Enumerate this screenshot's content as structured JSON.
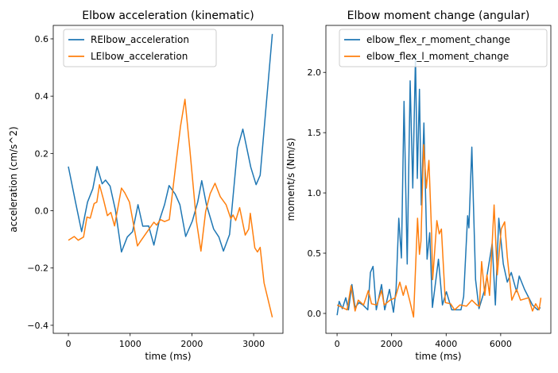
{
  "chart_data": [
    {
      "type": "line",
      "title": "Elbow acceleration (kinematic)",
      "xlabel": "time (ms)",
      "ylabel": "acceleration (cm/s^2)",
      "xlim": [
        -245,
        3475
      ],
      "ylim": [
        -0.428,
        0.647
      ],
      "xticks": [
        0,
        1000,
        2000,
        3000
      ],
      "xtick_labels": [
        "0",
        "1000",
        "2000",
        "3000"
      ],
      "yticks": [
        -0.4,
        -0.2,
        0.0,
        0.2,
        0.4,
        0.6
      ],
      "ytick_labels": [
        "−0.4",
        "−0.2",
        "0.0",
        "0.2",
        "0.4",
        "0.6"
      ],
      "grid": false,
      "legend_position": "top-left",
      "series": [
        {
          "name": "RElbow_acceleration",
          "color": "#1f77b4",
          "x": [
            0,
            116,
            215,
            310,
            396,
            464,
            546,
            602,
            675,
            761,
            860,
            954,
            1040,
            1127,
            1204,
            1299,
            1385,
            1471,
            1557,
            1630,
            1729,
            1806,
            1900,
            2008,
            2094,
            2159,
            2236,
            2352,
            2438,
            2511,
            2610,
            2739,
            2825,
            2954,
            3040,
            3105,
            3302
          ],
          "y": [
            0.154,
            0.03,
            -0.073,
            0.03,
            0.077,
            0.154,
            0.094,
            0.107,
            0.086,
            0.002,
            -0.144,
            -0.092,
            -0.073,
            0.021,
            -0.054,
            -0.053,
            -0.12,
            -0.036,
            0.021,
            0.088,
            0.058,
            0.021,
            -0.09,
            -0.036,
            0.03,
            0.105,
            0.021,
            -0.064,
            -0.092,
            -0.141,
            -0.083,
            0.218,
            0.285,
            0.152,
            0.091,
            0.124,
            0.617
          ]
        },
        {
          "name": "LElbow_acceleration",
          "color": "#ff7f0e",
          "x": [
            0,
            95,
            159,
            245,
            301,
            353,
            417,
            460,
            503,
            568,
            632,
            688,
            748,
            860,
            912,
            989,
            1118,
            1170,
            1277,
            1385,
            1428,
            1492,
            1557,
            1634,
            1729,
            1815,
            1888,
            1965,
            2073,
            2146,
            2223,
            2296,
            2374,
            2460,
            2554,
            2631,
            2666,
            2709,
            2773,
            2864,
            2920,
            2946,
            3019,
            3062,
            3105,
            3169,
            3302
          ],
          "y": [
            -0.103,
            -0.09,
            -0.103,
            -0.092,
            -0.022,
            -0.026,
            0.025,
            0.03,
            0.091,
            0.039,
            -0.017,
            -0.006,
            -0.053,
            0.079,
            0.063,
            0.03,
            -0.123,
            -0.106,
            -0.073,
            -0.04,
            -0.05,
            -0.031,
            -0.038,
            -0.031,
            0.143,
            0.293,
            0.389,
            0.218,
            -0.036,
            -0.141,
            -0.003,
            0.06,
            0.096,
            0.049,
            0.021,
            -0.028,
            -0.015,
            -0.034,
            0.011,
            -0.085,
            -0.064,
            -0.009,
            -0.13,
            -0.144,
            -0.128,
            -0.252,
            -0.372
          ]
        }
      ]
    },
    {
      "type": "line",
      "title": "Elbow moment change (angular)",
      "xlabel": "time (ms)",
      "ylabel": "moment/s (Nm/s)",
      "xlim": [
        -410,
        7840
      ],
      "ylim": [
        -0.165,
        2.39
      ],
      "xticks": [
        0,
        2000,
        4000,
        6000
      ],
      "xtick_labels": [
        "0",
        "2000",
        "4000",
        "6000"
      ],
      "yticks": [
        0.0,
        0.5,
        1.0,
        1.5,
        2.0
      ],
      "ytick_labels": [
        "0.0",
        "0.5",
        "1.0",
        "1.5",
        "2.0"
      ],
      "grid": false,
      "legend_position": "top-right",
      "series": [
        {
          "name": "elbow_flex_r_moment_change",
          "color": "#1f77b4",
          "x": [
            0,
            78,
            194,
            320,
            417,
            544,
            660,
            806,
            951,
            1126,
            1223,
            1320,
            1437,
            1631,
            1748,
            1922,
            2068,
            2165,
            2262,
            2359,
            2456,
            2573,
            2680,
            2777,
            2874,
            2942,
            3020,
            3088,
            3185,
            3301,
            3398,
            3496,
            3719,
            3865,
            4010,
            4204,
            4544,
            4641,
            4787,
            4835,
            4942,
            5078,
            5204,
            5418,
            5690,
            5806,
            5932,
            6098,
            6243,
            6389,
            6583,
            6680,
            6874,
            7166,
            7360,
            7457
          ],
          "y": [
            -0.015,
            0.1,
            0.04,
            0.13,
            0.03,
            0.24,
            0.05,
            0.09,
            0.07,
            0.03,
            0.34,
            0.39,
            0.03,
            0.24,
            0.03,
            0.2,
            0.01,
            0.2,
            0.79,
            0.46,
            1.76,
            0.41,
            1.93,
            1.04,
            2.13,
            1.12,
            1.86,
            0.9,
            1.58,
            0.45,
            0.67,
            0.05,
            0.45,
            0.07,
            0.18,
            0.03,
            0.03,
            0.14,
            0.81,
            0.71,
            1.38,
            0.28,
            0.04,
            0.2,
            0.58,
            0.07,
            0.79,
            0.41,
            0.26,
            0.34,
            0.18,
            0.31,
            0.2,
            0.07,
            0.03,
            0.05
          ]
        },
        {
          "name": "elbow_flex_l_moment_change",
          "color": "#ff7f0e",
          "x": [
            0,
            194,
            369,
            515,
            660,
            777,
            971,
            1146,
            1262,
            1457,
            1631,
            1728,
            1942,
            2136,
            2301,
            2427,
            2525,
            2670,
            2806,
            2952,
            3020,
            3078,
            3175,
            3272,
            3369,
            3466,
            3505,
            3661,
            3748,
            3826,
            3971,
            4165,
            4311,
            4505,
            4748,
            4942,
            5127,
            5223,
            5301,
            5418,
            5495,
            5592,
            5758,
            5874,
            6020,
            6146,
            6243,
            6408,
            6583,
            6729,
            7020,
            7166,
            7282,
            7408,
            7477
          ],
          "y": [
            0.07,
            0.05,
            0.03,
            0.23,
            0.02,
            0.11,
            0.07,
            0.19,
            0.08,
            0.07,
            0.19,
            0.07,
            0.11,
            0.13,
            0.26,
            0.15,
            0.23,
            0.1,
            -0.03,
            0.79,
            0.49,
            0.6,
            1.4,
            1.04,
            1.27,
            0.66,
            0.28,
            0.77,
            0.66,
            0.7,
            0.09,
            0.08,
            0.03,
            0.07,
            0.06,
            0.11,
            0.07,
            0.06,
            0.43,
            0.15,
            0.32,
            0.15,
            0.9,
            0.32,
            0.7,
            0.76,
            0.47,
            0.11,
            0.2,
            0.11,
            0.13,
            0.02,
            0.08,
            0.03,
            0.13
          ]
        }
      ]
    }
  ]
}
